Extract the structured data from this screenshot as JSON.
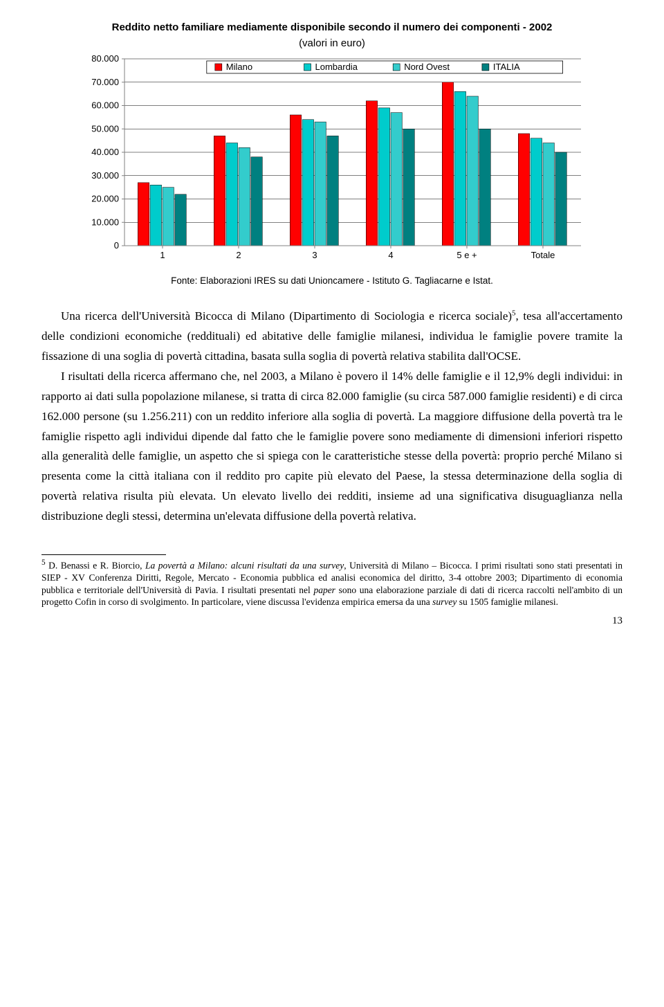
{
  "chart": {
    "title": "Reddito netto familiare mediamente disponibile secondo il numero dei componenti - 2002",
    "subtitle": "(valori in euro)",
    "type": "grouped-bar",
    "background_color": "#ffffff",
    "gridline_color": "#000000",
    "axis_color": "#808080",
    "ylim": [
      0,
      80000
    ],
    "ytick_step": 10000,
    "yticks": [
      "0",
      "10.000",
      "20.000",
      "30.000",
      "40.000",
      "50.000",
      "60.000",
      "70.000",
      "80.000"
    ],
    "categories": [
      "1",
      "2",
      "3",
      "4",
      "5 e +",
      "Totale"
    ],
    "series": [
      {
        "name": "Milano",
        "color": "#ff0000",
        "values": [
          27000,
          47000,
          56000,
          62000,
          70000,
          48000
        ]
      },
      {
        "name": "Lombardia",
        "color": "#00cccc",
        "values": [
          26000,
          44000,
          54000,
          59000,
          66000,
          46000
        ]
      },
      {
        "name": "Nord Ovest",
        "color": "#33cccc",
        "values": [
          25000,
          42000,
          53000,
          57000,
          64000,
          44000
        ]
      },
      {
        "name": "ITALIA",
        "color": "#008080",
        "values": [
          22000,
          38000,
          47000,
          50000,
          50000,
          40000
        ]
      }
    ],
    "legend_box_border": "#000000",
    "legend_swatch_border": "#000000",
    "label_fontfamily": "Arial",
    "tick_fontsize": 13,
    "bar_group_gap": 0.35,
    "bar_width_ratio": 0.17,
    "source": "Fonte: Elaborazioni IRES su dati Unioncamere - Istituto G. Tagliacarne e Istat."
  },
  "body": {
    "p1a": "Una ricerca dell'Università Bicocca di Milano (Dipartimento di Sociologia e ricerca sociale)",
    "p1b": ", tesa all'accertamento delle condizioni economiche (reddituali) ed abitative delle famiglie milanesi, individua le famiglie povere tramite la fissazione di una soglia di povertà cittadina, basata sulla soglia di povertà relativa stabilita dall'OCSE.",
    "p2": "I risultati della ricerca affermano che, nel 2003, a Milano è povero il 14% delle famiglie e il 12,9% degli individui: in rapporto ai dati sulla popolazione milanese, si tratta di circa 82.000 famiglie (su circa 587.000 famiglie residenti) e di circa 162.000 persone (su 1.256.211) con un reddito inferiore alla soglia di povertà. La maggiore diffusione della povertà tra le famiglie rispetto agli individui dipende dal fatto che le famiglie povere sono mediamente di dimensioni inferiori rispetto alla generalità delle famiglie, un aspetto che si spiega con le caratteristiche stesse della povertà: proprio perché Milano si presenta come la città italiana con il reddito pro capite più elevato del Paese, la stessa determinazione della soglia di povertà relativa risulta più elevata. Un elevato livello dei redditi, insieme ad una significativa disuguaglianza nella distribuzione degli stessi, determina un'elevata diffusione della povertà relativa."
  },
  "footnote": {
    "marker": "5",
    "a": " D. Benassi e R. Biorcio, ",
    "b_italic": "La povertà a Milano: alcuni risultati da una survey",
    "c": ", Università di Milano – Bicocca. I primi risultati sono stati presentati in SIEP - XV Conferenza Diritti, Regole, Mercato - Economia pubblica ed analisi economica del diritto, 3-4 ottobre 2003; Dipartimento di economia pubblica e territoriale dell'Università di Pavia. I risultati presentati nel ",
    "d_italic": "paper",
    "e": " sono una elaborazione parziale di dati di ricerca raccolti nell'ambito di un progetto Cofin in corso di svolgimento. In particolare, viene discussa l'evidenza empirica emersa da una ",
    "f_italic": "survey",
    "g": " su 1505 famiglie milanesi."
  },
  "page_number": "13"
}
